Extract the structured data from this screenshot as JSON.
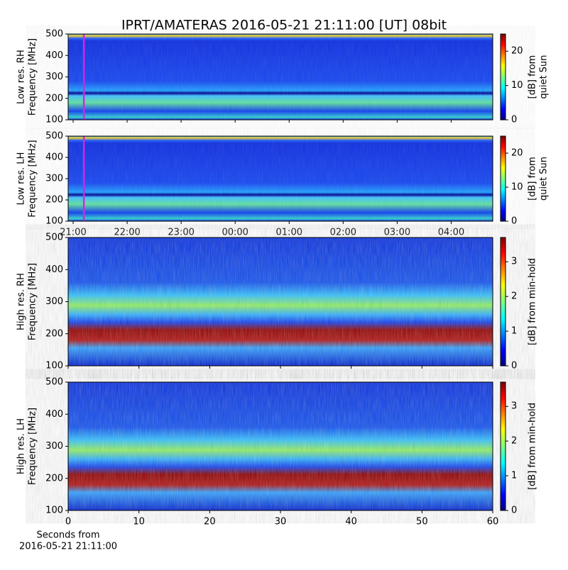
{
  "title": "IPRT/AMATERAS 2016-05-21 21:11:00 [UT]   08bit",
  "chart_data": [
    {
      "type": "heatmap",
      "ylabel": [
        "Low res. RH",
        "Frequency [MHz]"
      ],
      "ylim": [
        100,
        500
      ],
      "yticks": [
        100,
        200,
        300,
        400,
        500
      ],
      "colorbar_label": [
        "[dB] from",
        "quiet Sun"
      ],
      "clim": [
        0,
        25
      ],
      "cticks": [
        0,
        10,
        20
      ]
    },
    {
      "type": "heatmap",
      "ylabel": [
        "Low res. LH",
        "Frequency [MHz]"
      ],
      "ylim": [
        100,
        500
      ],
      "yticks": [
        100,
        200,
        300,
        400,
        500
      ],
      "colorbar_label": [
        "[dB] from",
        "quiet Sun"
      ],
      "clim": [
        0,
        25
      ],
      "cticks": [
        0,
        10,
        20
      ],
      "xticks": [
        "21:00",
        "22:00",
        "23:00",
        "00:00",
        "01:00",
        "02:00",
        "03:00",
        "04:00"
      ]
    },
    {
      "type": "heatmap",
      "ylabel": [
        "High res. RH",
        "Frequency [MHz]"
      ],
      "ylim": [
        100,
        500
      ],
      "yticks": [
        100,
        200,
        300,
        400,
        500
      ],
      "colorbar_label": [
        "[dB] from min-hold"
      ],
      "clim": [
        0,
        3.7
      ],
      "cticks": [
        0,
        1,
        2,
        3
      ],
      "xlim": [
        0,
        60
      ]
    },
    {
      "type": "heatmap",
      "ylabel": [
        "High res. LH",
        "Frequency [MHz]"
      ],
      "ylim": [
        100,
        500
      ],
      "yticks": [
        100,
        200,
        300,
        400,
        500
      ],
      "colorbar_label": [
        "[dB] from min-hold"
      ],
      "clim": [
        0,
        3.7
      ],
      "cticks": [
        0,
        1,
        2,
        3
      ],
      "xlim": [
        0,
        60
      ],
      "xticks": [
        0,
        10,
        20,
        30,
        40,
        50,
        60
      ],
      "xlabel": [
        "Seconds from",
        "2016-05-21 21:11:00"
      ]
    }
  ]
}
